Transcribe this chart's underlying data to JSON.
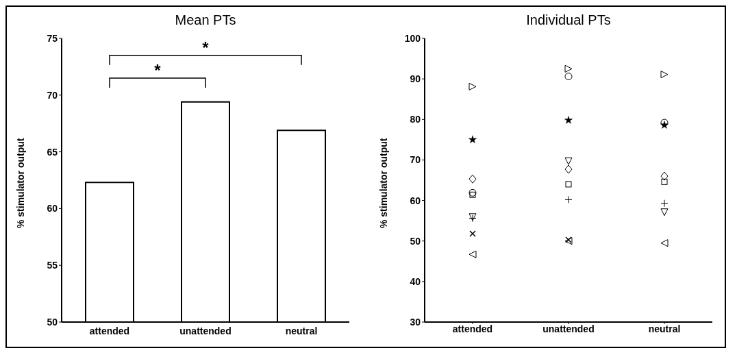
{
  "chart_data": [
    {
      "type": "bar",
      "title": "Mean PTs",
      "ylabel": "% stimulator output",
      "categories": [
        "attended",
        "unattended",
        "neutral"
      ],
      "values": [
        62.3,
        69.4,
        66.9
      ],
      "color": "#ffffff",
      "ylim": [
        50,
        75
      ],
      "yticks": [
        50,
        55,
        60,
        65,
        70,
        75
      ],
      "grid": false,
      "legend": false,
      "annotations": [
        "*",
        "*"
      ]
    },
    {
      "type": "scatter",
      "title": "Individual PTs",
      "ylabel": "% stimulator output",
      "categories": [
        "attended",
        "unattended",
        "neutral"
      ],
      "ylim": [
        30,
        100
      ],
      "yticks": [
        30,
        40,
        50,
        60,
        70,
        80,
        90,
        100
      ],
      "grid": false,
      "legend": false,
      "series": [
        {
          "color": "#000000",
          "marker": "triangle-right",
          "values": [
            88.1,
            92.5,
            91.1
          ]
        },
        {
          "color": "#000000",
          "marker": "star",
          "values": [
            75.0,
            79.8,
            78.6
          ]
        },
        {
          "color": "#000000",
          "marker": "diamond",
          "values": [
            65.3,
            67.7,
            66.0
          ]
        },
        {
          "color": "#000000",
          "marker": "circle",
          "values": [
            61.9,
            90.6,
            79.2
          ]
        },
        {
          "color": "#000000",
          "marker": "square",
          "values": [
            61.4,
            64.0,
            64.6
          ]
        },
        {
          "color": "#000000",
          "marker": "triangle-down",
          "values": [
            55.9,
            69.7,
            57.1
          ]
        },
        {
          "color": "#000000",
          "marker": "plus",
          "values": [
            55.6,
            60.2,
            59.3
          ]
        },
        {
          "color": "#000000",
          "marker": "cross",
          "values": [
            51.8,
            50.3,
            null
          ]
        },
        {
          "color": "#000000",
          "marker": "triangle-left",
          "values": [
            46.7,
            50.0,
            49.5
          ]
        }
      ]
    }
  ]
}
